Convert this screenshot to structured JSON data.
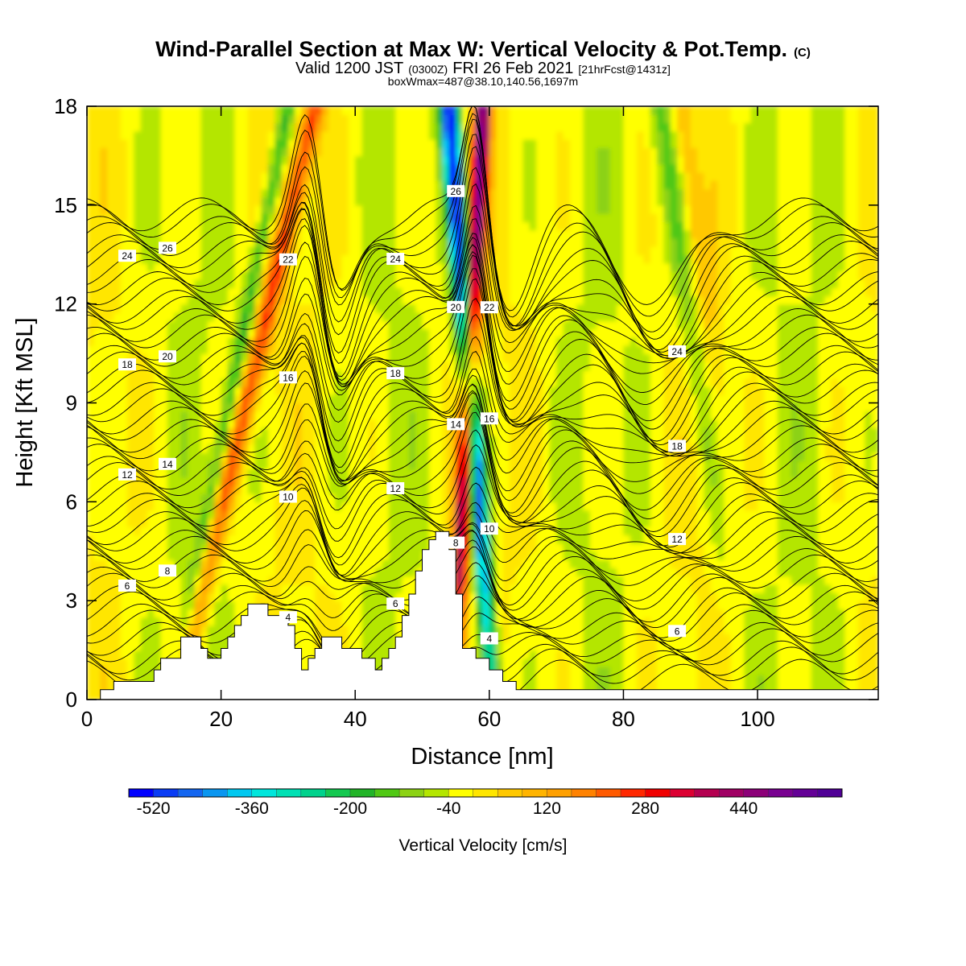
{
  "chart_data": {
    "type": "heatmap",
    "title": "Wind-Parallel Section at Max W: Vertical Velocity & Pot.Temp.",
    "title_mark": "(C)",
    "subtitle_parts": [
      "Valid 1200 JST",
      "(0300Z)",
      "FRI 26 Feb 2021",
      "[21hrFcst@1431z]"
    ],
    "subtitle2": "boxWmax=487@38.10,140.56,1697m",
    "xlabel": "Distance [nm]",
    "ylabel": "Height [Kft MSL]",
    "xlim": [
      0,
      118
    ],
    "ylim": [
      0,
      18
    ],
    "xticks": [
      0,
      20,
      40,
      60,
      80,
      100
    ],
    "yticks": [
      0,
      3,
      6,
      9,
      12,
      15,
      18
    ],
    "colorbar": {
      "label": "Vertical Velocity [cm/s]",
      "range": [
        -560,
        600
      ],
      "step": 40,
      "tick_labels": [
        -520,
        -360,
        -200,
        -40,
        120,
        280,
        440
      ],
      "colors": [
        "#0000ff",
        "#0a3cf5",
        "#1466f0",
        "#0a96f0",
        "#00c8f0",
        "#00e6dc",
        "#00e0b4",
        "#00d28c",
        "#14c850",
        "#22b428",
        "#50c814",
        "#8cd214",
        "#b4e600",
        "#ffff00",
        "#ffe600",
        "#ffc800",
        "#ffb400",
        "#ffa000",
        "#ff8200",
        "#ff5a00",
        "#ff2800",
        "#f00000",
        "#dc0032",
        "#b40050",
        "#a00064",
        "#8c0078",
        "#780090",
        "#640096",
        "#500096"
      ]
    },
    "contour_field": "Potential Temperature",
    "contour_levels": [
      4,
      6,
      8,
      10,
      12,
      14,
      16,
      18,
      20,
      22,
      24,
      26
    ],
    "terrain_profile": [
      [
        0,
        0
      ],
      [
        2,
        0
      ],
      [
        2,
        0.3
      ],
      [
        4,
        0.3
      ],
      [
        4,
        0.55
      ],
      [
        10,
        0.55
      ],
      [
        10,
        0.9
      ],
      [
        11,
        0.9
      ],
      [
        11,
        1.25
      ],
      [
        14,
        1.25
      ],
      [
        14,
        1.9
      ],
      [
        17,
        1.9
      ],
      [
        17,
        1.55
      ],
      [
        18,
        1.55
      ],
      [
        18,
        1.25
      ],
      [
        20,
        1.25
      ],
      [
        20,
        1.55
      ],
      [
        21,
        1.55
      ],
      [
        21,
        1.9
      ],
      [
        22,
        1.9
      ],
      [
        22,
        2.25
      ],
      [
        23,
        2.25
      ],
      [
        23,
        2.55
      ],
      [
        24,
        2.55
      ],
      [
        24,
        2.9
      ],
      [
        27,
        2.9
      ],
      [
        27,
        2.55
      ],
      [
        30,
        2.55
      ],
      [
        30,
        2.25
      ],
      [
        31,
        2.25
      ],
      [
        31,
        1.55
      ],
      [
        32,
        1.55
      ],
      [
        32,
        0.9
      ],
      [
        33,
        0.9
      ],
      [
        33,
        1.25
      ],
      [
        34,
        1.25
      ],
      [
        34,
        1.55
      ],
      [
        35,
        1.55
      ],
      [
        35,
        1.9
      ],
      [
        38,
        1.9
      ],
      [
        38,
        1.55
      ],
      [
        41,
        1.55
      ],
      [
        41,
        1.25
      ],
      [
        43,
        1.25
      ],
      [
        43,
        0.9
      ],
      [
        44,
        0.9
      ],
      [
        44,
        1.25
      ],
      [
        45,
        1.25
      ],
      [
        45,
        1.55
      ],
      [
        46,
        1.55
      ],
      [
        46,
        1.9
      ],
      [
        47,
        1.9
      ],
      [
        47,
        2.55
      ],
      [
        48,
        2.55
      ],
      [
        48,
        3.2
      ],
      [
        49,
        3.2
      ],
      [
        49,
        3.9
      ],
      [
        50,
        3.9
      ],
      [
        50,
        4.55
      ],
      [
        51,
        4.55
      ],
      [
        51,
        4.85
      ],
      [
        52,
        4.85
      ],
      [
        52,
        5.1
      ],
      [
        54,
        5.1
      ],
      [
        54,
        4.55
      ],
      [
        55,
        4.55
      ],
      [
        55,
        3.2
      ],
      [
        56,
        3.2
      ],
      [
        56,
        1.55
      ],
      [
        58,
        1.55
      ],
      [
        58,
        1.25
      ],
      [
        60,
        1.25
      ],
      [
        60,
        0.9
      ],
      [
        62,
        0.9
      ],
      [
        62,
        0.55
      ],
      [
        64,
        0.55
      ],
      [
        64,
        0.3
      ],
      [
        65,
        0.3
      ],
      [
        65,
        0.3
      ],
      [
        118,
        0.3
      ],
      [
        118,
        0
      ]
    ],
    "updraft_bands": [
      {
        "center_x_at_top": 34,
        "slope": -0.19,
        "width": 1.6,
        "amplitude": 260
      },
      {
        "center_x_at_top": 30,
        "slope": -0.16,
        "width": 1.2,
        "amplitude": -160
      },
      {
        "center_x_at_top": 59,
        "slope": -0.04,
        "width": 1.3,
        "amplitude": 500
      },
      {
        "center_x_at_top": 54,
        "slope": 0.06,
        "width": 1.4,
        "amplitude": -520
      },
      {
        "center_x_at_top": 86,
        "slope": 0.12,
        "width": 2.2,
        "amplitude": -160
      },
      {
        "center_x_at_top": 88,
        "slope": 0.1,
        "width": 2.0,
        "amplitude": 140
      }
    ]
  }
}
